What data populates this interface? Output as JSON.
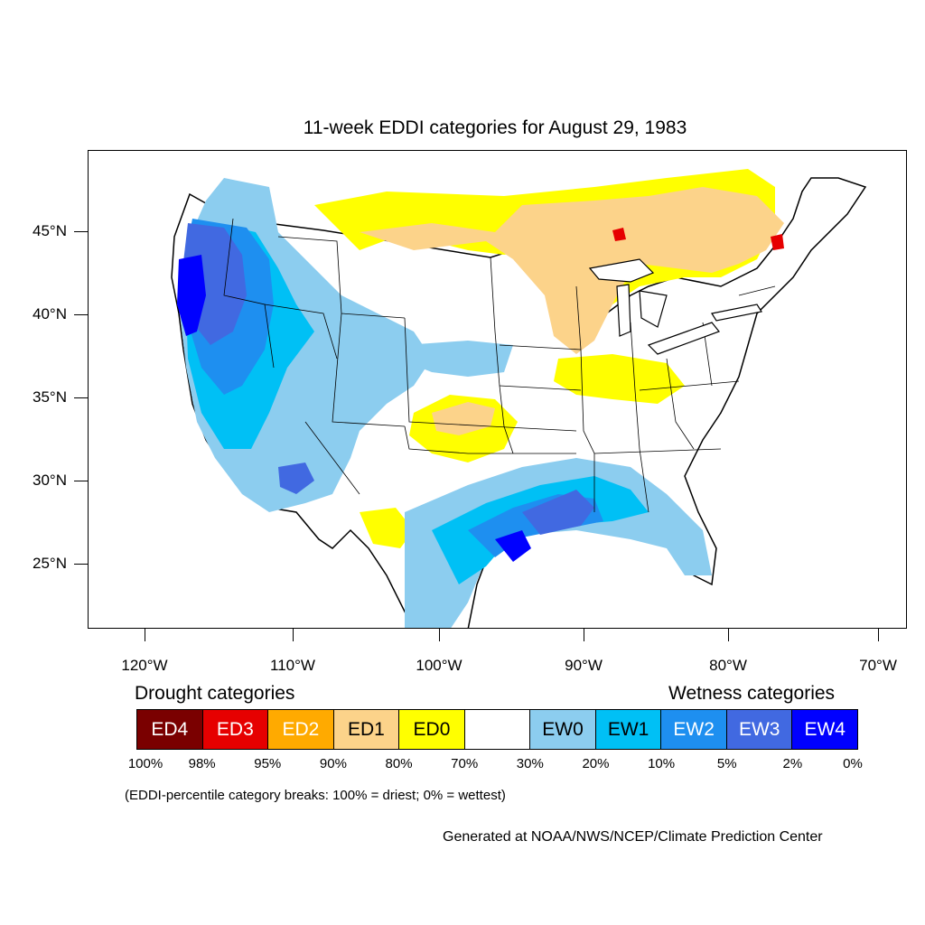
{
  "title": "11-week EDDI categories for August 29, 1983",
  "map": {
    "lat_labels": [
      {
        "label": "45°N",
        "lat": 45
      },
      {
        "label": "40°N",
        "lat": 40
      },
      {
        "label": "35°N",
        "lat": 35
      },
      {
        "label": "30°N",
        "lat": 30
      },
      {
        "label": "25°N",
        "lat": 25
      }
    ],
    "lon_labels": [
      {
        "label": "120°W",
        "lon": -120
      },
      {
        "label": "110°W",
        "lon": -110
      },
      {
        "label": "100°W",
        "lon": -100
      },
      {
        "label": "90°W",
        "lon": -90
      },
      {
        "label": "80°W",
        "lon": -80
      },
      {
        "label": "70°W",
        "lon": -70
      }
    ]
  },
  "legend": {
    "drought_heading": "Drought categories",
    "wetness_heading": "Wetness categories",
    "categories": [
      {
        "label": "ED4",
        "color": "#7a0000",
        "text_color": "#ffffff"
      },
      {
        "label": "ED3",
        "color": "#e60000",
        "text_color": "#ffffff"
      },
      {
        "label": "ED2",
        "color": "#ffaa00",
        "text_color": "#ffffff"
      },
      {
        "label": "ED1",
        "color": "#fcd38a",
        "text_color": "#000000"
      },
      {
        "label": "ED0",
        "color": "#ffff00",
        "text_color": "#000000"
      },
      {
        "label": "",
        "color": "#ffffff",
        "text_color": "#000000"
      },
      {
        "label": "EW0",
        "color": "#8ccdef",
        "text_color": "#000000"
      },
      {
        "label": "EW1",
        "color": "#00c0f5",
        "text_color": "#000000"
      },
      {
        "label": "EW2",
        "color": "#1e8ff0",
        "text_color": "#ffffff"
      },
      {
        "label": "EW3",
        "color": "#4169e1",
        "text_color": "#ffffff"
      },
      {
        "label": "EW4",
        "color": "#0000ff",
        "text_color": "#ffffff"
      }
    ],
    "breaks": [
      "100%",
      "98%",
      "95%",
      "90%",
      "80%",
      "70%",
      "30%",
      "20%",
      "10%",
      "5%",
      "2%",
      "0%"
    ]
  },
  "note": "(EDDI-percentile category breaks: 100% = driest; 0% = wettest)",
  "credit": "Generated at NOAA/NWS/NCEP/Climate Prediction Center"
}
